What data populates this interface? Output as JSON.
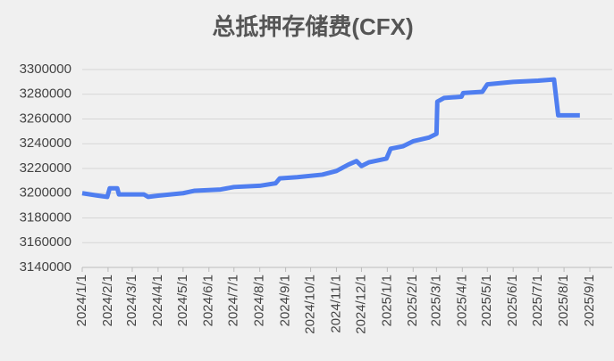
{
  "chart_data": {
    "type": "line",
    "title": "总抵押存储费(CFX)",
    "x": [
      "2024/1/1",
      "2024/1/20",
      "2024/1/31",
      "2024/2/3",
      "2024/2/12",
      "2024/2/14",
      "2024/3/15",
      "2024/3/20",
      "2024/4/1",
      "2024/5/1",
      "2024/5/15",
      "2024/6/15",
      "2024/7/1",
      "2024/8/1",
      "2024/8/20",
      "2024/8/25",
      "2024/9/15",
      "2024/10/15",
      "2024/11/1",
      "2024/11/15",
      "2024/11/25",
      "2024/12/1",
      "2024/12/10",
      "2024/12/31",
      "2025/1/5",
      "2025/1/20",
      "2025/2/1",
      "2025/2/20",
      "2025/3/1",
      "2025/3/2",
      "2025/3/10",
      "2025/3/31",
      "2025/4/2",
      "2025/4/25",
      "2025/5/1",
      "2025/6/1",
      "2025/7/1",
      "2025/7/20",
      "2025/7/25",
      "2025/8/20"
    ],
    "values": [
      3200000,
      3198000,
      3197000,
      3204000,
      3204000,
      3199000,
      3199000,
      3197000,
      3198000,
      3200000,
      3202000,
      3203000,
      3205000,
      3206000,
      3208000,
      3212000,
      3213000,
      3215000,
      3218000,
      3223000,
      3226000,
      3222000,
      3225000,
      3228000,
      3236000,
      3238000,
      3242000,
      3245000,
      3248000,
      3274000,
      3277000,
      3278000,
      3281000,
      3282000,
      3288000,
      3290000,
      3291000,
      3292000,
      3263000,
      3263000
    ],
    "color": "#4f7ef0",
    "xlim": [
      "2024/1/1",
      "2025/9/1"
    ],
    "xticks": [
      "2024/1/1",
      "2024/2/1",
      "2024/3/1",
      "2024/4/1",
      "2024/5/1",
      "2024/6/1",
      "2024/7/1",
      "2024/8/1",
      "2024/9/1",
      "2024/10/1",
      "2024/11/1",
      "2024/12/1",
      "2025/1/1",
      "2025/2/1",
      "2025/3/1",
      "2025/4/1",
      "2025/5/1",
      "2025/6/1",
      "2025/7/1",
      "2025/8/1",
      "2025/9/1"
    ],
    "ylim": [
      3140000,
      3300000
    ],
    "yticks": [
      3140000,
      3160000,
      3180000,
      3200000,
      3220000,
      3240000,
      3260000,
      3280000,
      3300000
    ],
    "grid": true
  }
}
